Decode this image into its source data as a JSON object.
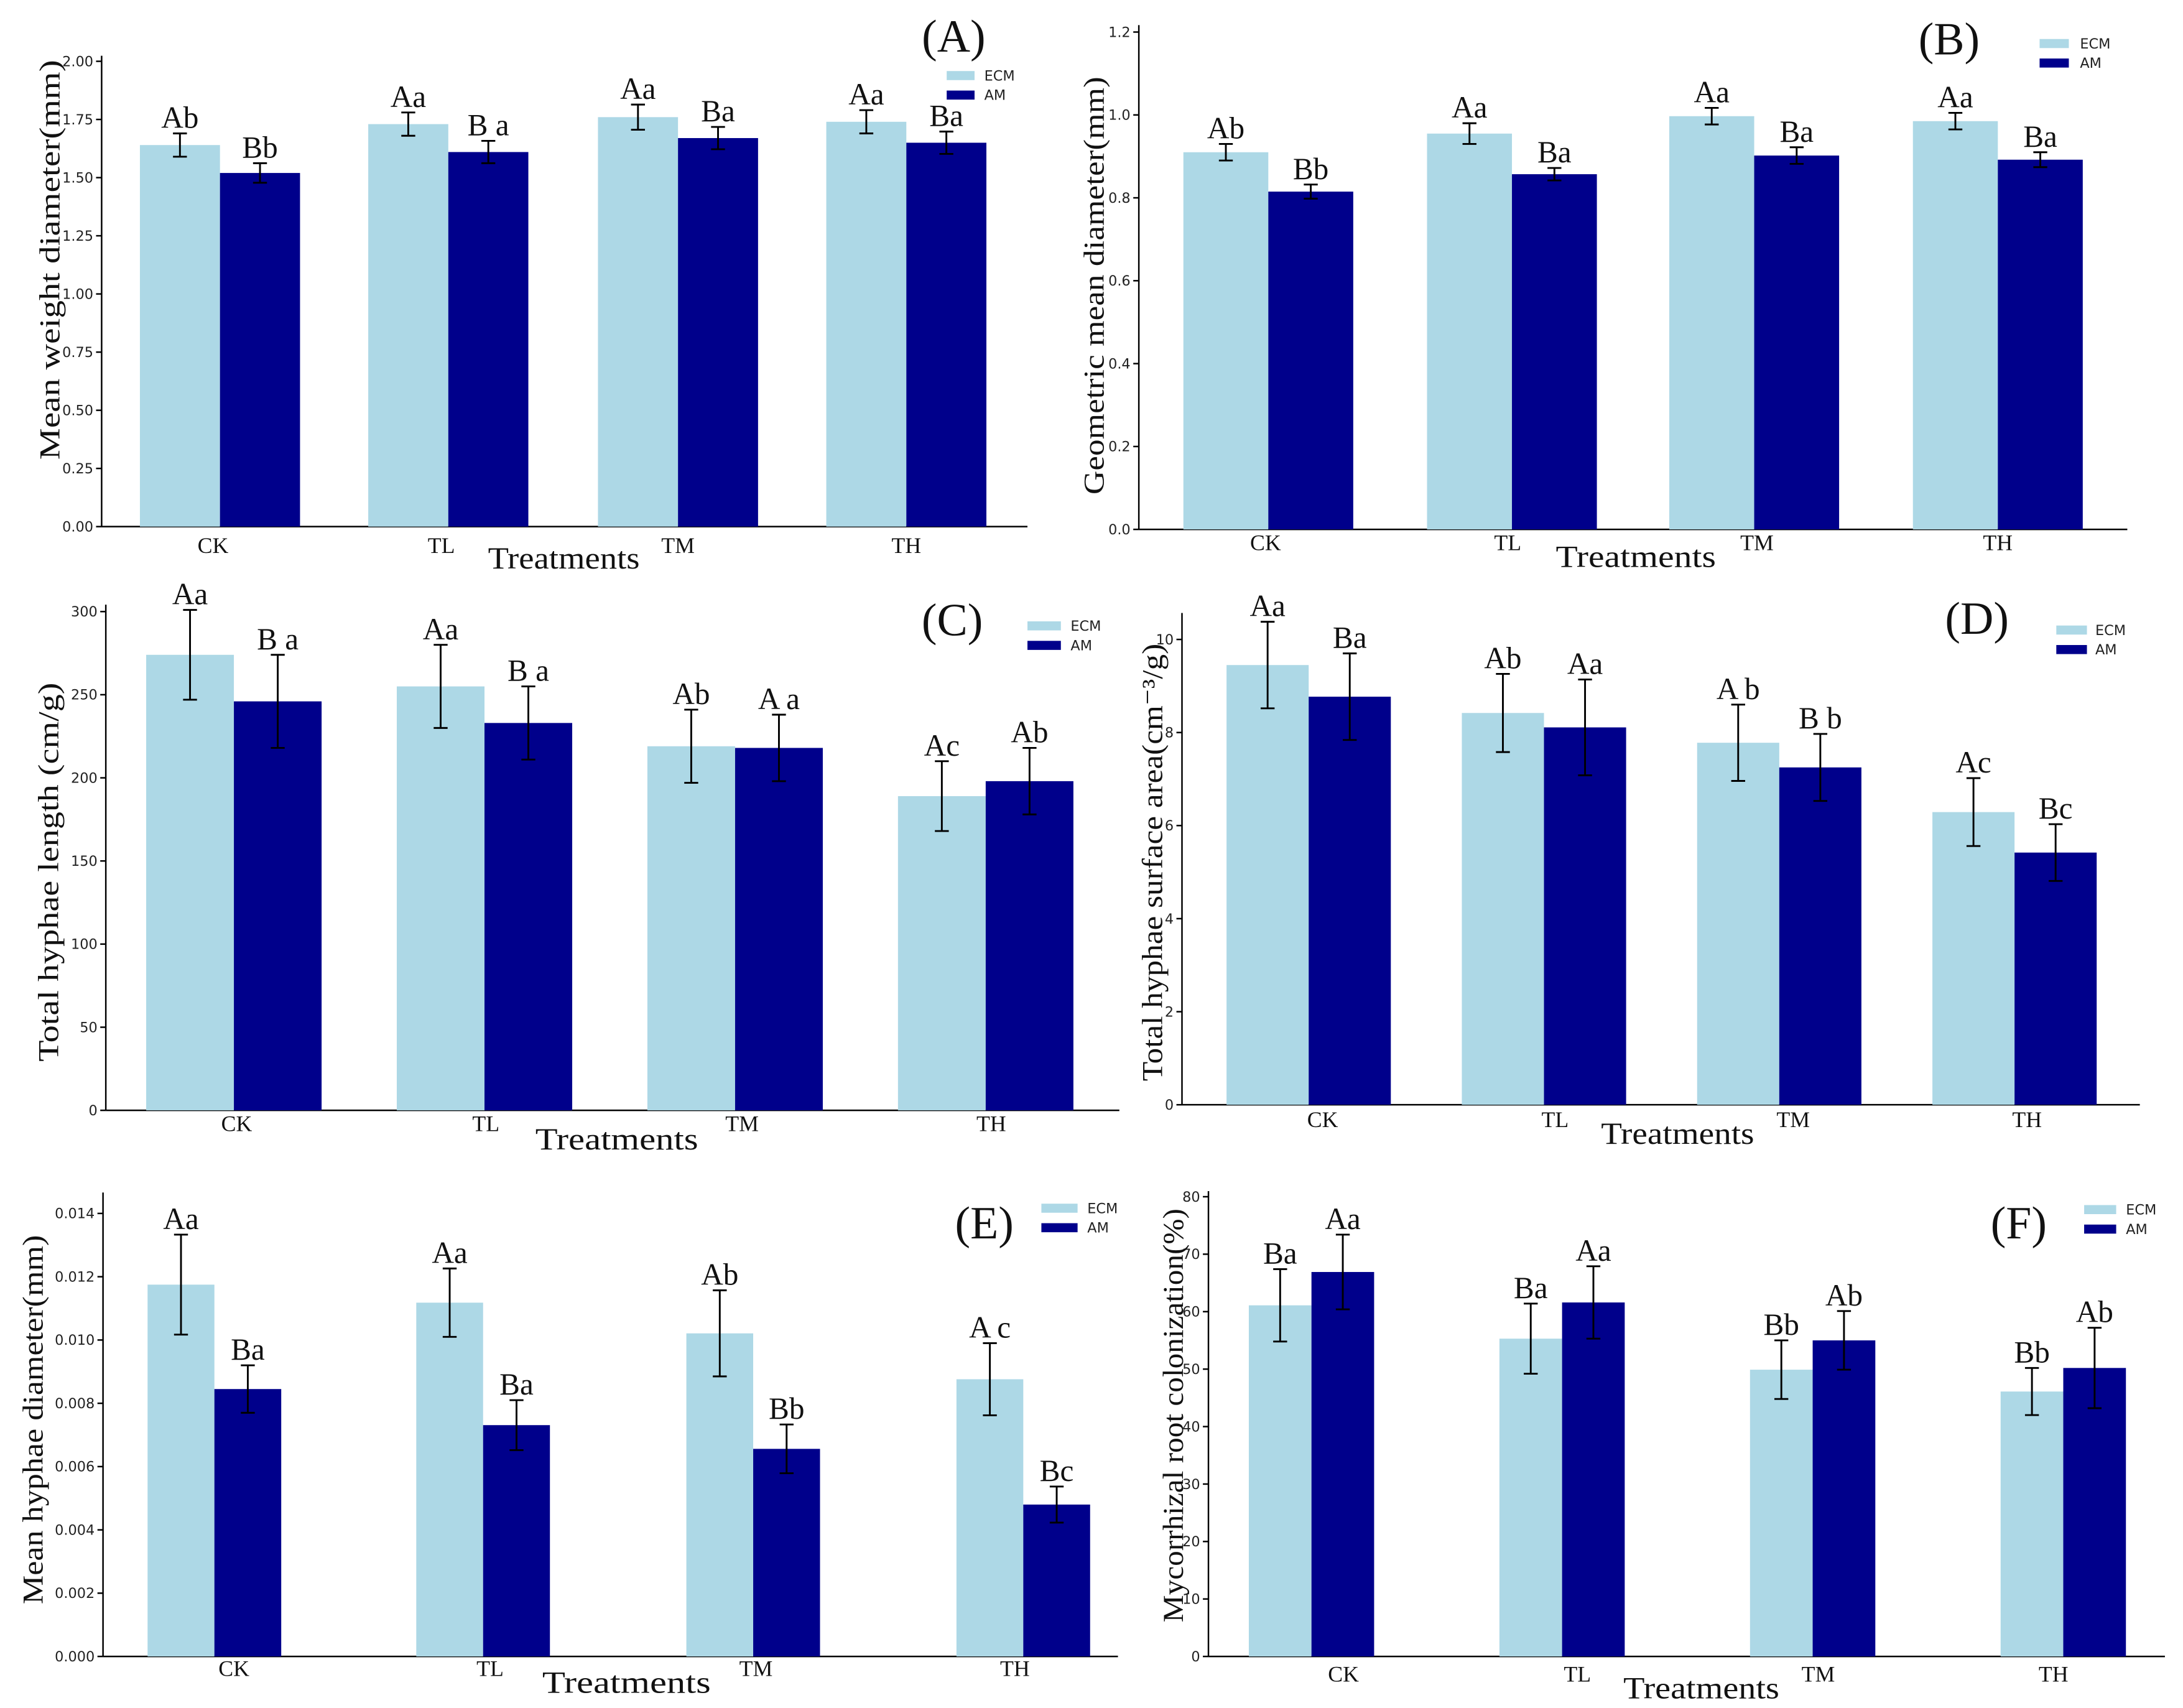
{
  "chart_data": [
    {
      "panel_label": "(A)",
      "type": "bar",
      "title": "",
      "categories": [
        "CK",
        "TL",
        "TM",
        "TH"
      ],
      "xlabel": "Treatments",
      "ylabel": "Mean weight diameter(mm)",
      "yticks": [
        "0.00",
        "0.25",
        "0.50",
        "0.75",
        "1.00",
        "1.25",
        "1.50",
        "1.75",
        "2.00"
      ],
      "ylim": [
        0,
        2.0
      ],
      "legend_position": "top-right",
      "series": [
        {
          "name": "ECM",
          "color": "#add8e6",
          "values": [
            1.64,
            1.73,
            1.76,
            1.74
          ],
          "errors": [
            0.05,
            0.05,
            0.054,
            0.05
          ],
          "letters": [
            "Ab",
            "Aa",
            "Aa",
            "Aa"
          ]
        },
        {
          "name": "AM",
          "color": "#00008b",
          "values": [
            1.52,
            1.61,
            1.67,
            1.65
          ],
          "errors": [
            0.042,
            0.048,
            0.048,
            0.048
          ],
          "letters": [
            "Bb",
            "B a",
            "Ba",
            "Ba"
          ]
        }
      ]
    },
    {
      "panel_label": "(B)",
      "type": "bar",
      "title": "",
      "categories": [
        "CK",
        "TL",
        "TM",
        "TH"
      ],
      "xlabel": "Treatments",
      "ylabel": "Geometric mean diameter(mm)",
      "yticks": [
        "0.0",
        "0.2",
        "0.4",
        "0.6",
        "0.8",
        "1.0",
        "1.2"
      ],
      "ylim": [
        0,
        1.2
      ],
      "legend_position": "top-right",
      "series": [
        {
          "name": "ECM",
          "color": "#add8e6",
          "values": [
            0.91,
            0.955,
            0.997,
            0.985
          ],
          "errors": [
            0.02,
            0.025,
            0.02,
            0.02
          ],
          "letters": [
            "Ab",
            "Aa",
            "Aa",
            "Aa"
          ]
        },
        {
          "name": "AM",
          "color": "#00008b",
          "values": [
            0.815,
            0.857,
            0.902,
            0.892
          ],
          "errors": [
            0.017,
            0.015,
            0.02,
            0.018
          ],
          "letters": [
            "Bb",
            "Ba",
            "Ba",
            "Ba"
          ]
        }
      ]
    },
    {
      "panel_label": "(C)",
      "type": "bar",
      "title": "",
      "categories": [
        "CK",
        "TL",
        "TM",
        "TH"
      ],
      "xlabel": "Treatments",
      "ylabel": "Total hyphae length (cm/g)",
      "yticks": [
        "0",
        "50",
        "100",
        "150",
        "200",
        "250",
        "300"
      ],
      "ylim": [
        0,
        300
      ],
      "legend_position": "top-right",
      "series": [
        {
          "name": "ECM",
          "color": "#add8e6",
          "values": [
            274,
            255,
            219,
            189
          ],
          "errors": [
            27,
            25,
            22,
            21
          ],
          "letters": [
            "Aa",
            "Aa",
            "Ab",
            "Ac"
          ]
        },
        {
          "name": "AM",
          "color": "#00008b",
          "values": [
            246,
            233,
            218,
            198
          ],
          "errors": [
            28,
            22,
            20,
            20
          ],
          "letters": [
            "B a",
            "B a",
            "A a",
            "Ab"
          ]
        }
      ]
    },
    {
      "panel_label": "(D)",
      "type": "bar",
      "title": "",
      "categories": [
        "CK",
        "TL",
        "TM",
        "TH"
      ],
      "xlabel": "Treatments",
      "ylabel": "Total hyphae surface area(cm⁻³/g)",
      "yticks": [
        "0",
        "2",
        "4",
        "6",
        "8",
        "10"
      ],
      "ylim": [
        0,
        10
      ],
      "legend_position": "top-right",
      "series": [
        {
          "name": "ECM",
          "color": "#add8e6",
          "values": [
            9.45,
            8.42,
            7.78,
            6.29
          ],
          "errors": [
            0.93,
            0.84,
            0.82,
            0.73
          ],
          "letters": [
            "Aa",
            "Ab",
            "A b",
            "Ac"
          ]
        },
        {
          "name": "AM",
          "color": "#00008b",
          "values": [
            8.77,
            8.11,
            7.25,
            5.42
          ],
          "errors": [
            0.93,
            1.03,
            0.72,
            0.61
          ],
          "letters": [
            "Ba",
            "Aa",
            "B b",
            "Bc"
          ]
        }
      ]
    },
    {
      "panel_label": "(E)",
      "type": "bar",
      "title": "",
      "categories": [
        "CK",
        "TL",
        "TM",
        "TH"
      ],
      "xlabel": "Treatments",
      "ylabel": "Mean hyphae diameter(mm)",
      "yticks": [
        "0.000",
        "0.002",
        "0.004",
        "0.006",
        "0.008",
        "0.010",
        "0.012",
        "0.014"
      ],
      "ylim": [
        0,
        0.014
      ],
      "legend_position": "top-right",
      "series": [
        {
          "name": "ECM",
          "color": "#add8e6",
          "values": [
            0.01175,
            0.01118,
            0.01021,
            0.00876
          ],
          "errors": [
            0.00158,
            0.00108,
            0.00136,
            0.00114
          ],
          "letters": [
            "Aa",
            "Aa",
            "Ab",
            "A c"
          ]
        },
        {
          "name": "AM",
          "color": "#00008b",
          "values": [
            0.00845,
            0.00731,
            0.00656,
            0.0048
          ],
          "errors": [
            0.00075,
            0.00079,
            0.00077,
            0.00057
          ],
          "letters": [
            "Ba",
            "Ba",
            "Bb",
            "Bc"
          ]
        }
      ]
    },
    {
      "panel_label": "(F)",
      "type": "bar",
      "title": "",
      "categories": [
        "CK",
        "TL",
        "TM",
        "TH"
      ],
      "xlabel": "Treatments",
      "ylabel": "Mycorrhizal root colonization(%)",
      "yticks": [
        "0",
        "10",
        "20",
        "30",
        "40",
        "50",
        "60",
        "70",
        "80"
      ],
      "ylim": [
        0,
        80
      ],
      "legend_position": "top-right",
      "series": [
        {
          "name": "ECM",
          "color": "#add8e6",
          "values": [
            61.1,
            55.3,
            49.9,
            46.1
          ],
          "errors": [
            6.3,
            6.1,
            5.1,
            4.1
          ],
          "letters": [
            "Ba",
            "Ba",
            "Bb",
            "Bb"
          ]
        },
        {
          "name": "AM",
          "color": "#00008b",
          "values": [
            66.9,
            61.6,
            55.0,
            50.2
          ],
          "errors": [
            6.5,
            6.3,
            5.1,
            7.0
          ],
          "letters": [
            "Aa",
            "Aa",
            "Ab",
            "Ab"
          ]
        }
      ]
    }
  ]
}
